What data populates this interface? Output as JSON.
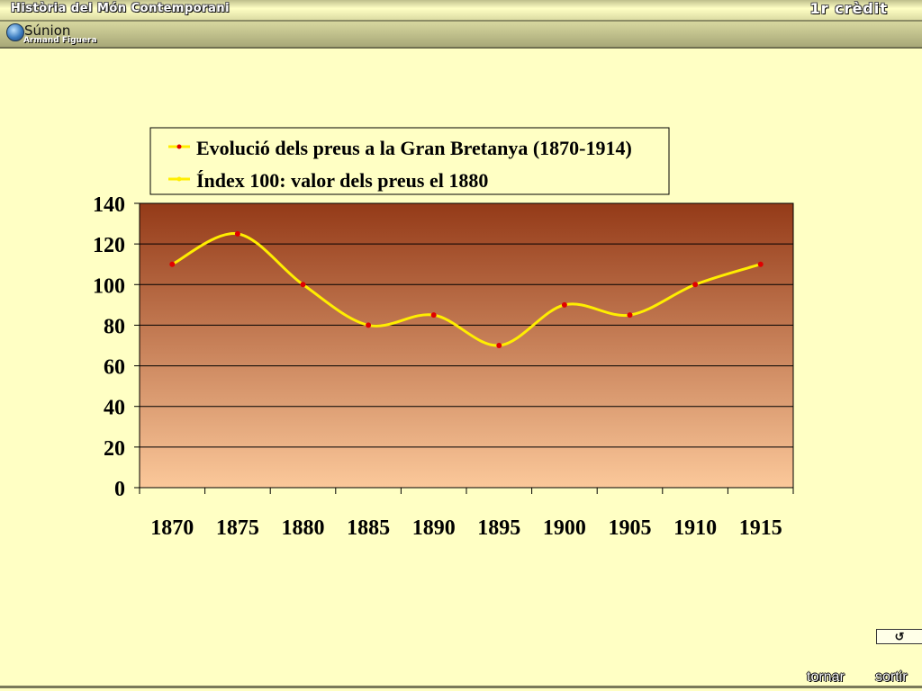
{
  "header": {
    "course_title": "Història del Món Contemporani",
    "credit_label": "1r crèdit",
    "logo_name": "Súnion",
    "logo_author": "Armand Figuera"
  },
  "footer": {
    "back_icon": "↺",
    "back_label": "tornar",
    "exit_label": "sortir"
  },
  "chart_data": {
    "type": "line",
    "legend": [
      "Evolució dels preus a la Gran Bretanya (1870-1914)",
      "Índex 100: valor dels preus el 1880"
    ],
    "legend_position": "top",
    "x": [
      1870,
      1875,
      1880,
      1885,
      1890,
      1895,
      1900,
      1905,
      1910,
      1915
    ],
    "x_ticks": [
      "1870",
      "1875",
      "1880",
      "1885",
      "1890",
      "1895",
      "1900",
      "1905",
      "1910",
      "1915"
    ],
    "points": [
      {
        "x": 1870,
        "y": 110
      },
      {
        "x": 1875,
        "y": 125
      },
      {
        "x": 1880,
        "y": 100
      },
      {
        "x": 1885,
        "y": 80
      },
      {
        "x": 1890,
        "y": 85
      },
      {
        "x": 1895,
        "y": 70
      },
      {
        "x": 1900,
        "y": 90
      },
      {
        "x": 1905,
        "y": 85
      },
      {
        "x": 1910,
        "y": 100
      },
      {
        "x": 1915,
        "y": 110
      }
    ],
    "y_ticks": [
      0,
      20,
      40,
      60,
      80,
      100,
      120,
      140
    ],
    "ylim": [
      0,
      140
    ],
    "grid": true,
    "line_color": "#ffee00",
    "marker_color": "#e00000",
    "plot_gradient": [
      "#943a18",
      "#fbc89a"
    ]
  }
}
